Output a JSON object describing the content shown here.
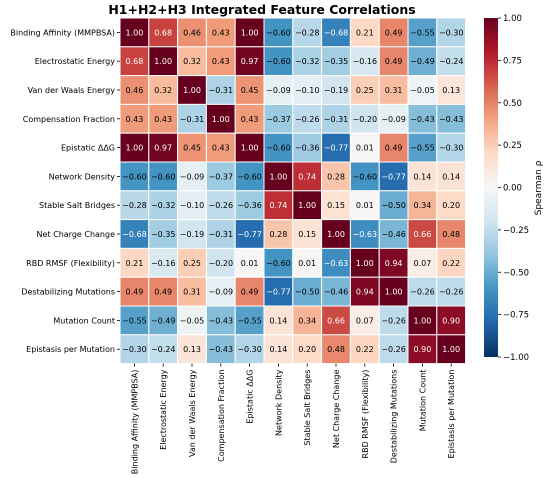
{
  "chart_data": {
    "type": "heatmap",
    "title": "H1+H2+H3 Integrated Feature Correlations",
    "row_labels": [
      "Binding Affinity (MMPBSA)",
      "Electrostatic Energy",
      "Van der Waals Energy",
      "Compensation Fraction",
      "Epistatic ΔΔG",
      "Network Density",
      "Stable Salt Bridges",
      "Net Charge Change",
      "RBD RMSF (Flexibility)",
      "Destabilizing Mutations",
      "Mutation Count",
      "Epistasis per Mutation"
    ],
    "col_labels": [
      "Binding Affinity (MMPBSA)",
      "Electrostatic Energy",
      "Van der Waals Energy",
      "Compensation Fraction",
      "Epistatic ΔΔG",
      "Network Density",
      "Stable Salt Bridges",
      "Net Charge Change",
      "RBD RMSF (Flexibility)",
      "Destabilizing Mutations",
      "Mutation Count",
      "Epistasis per Mutation"
    ],
    "values": [
      [
        1.0,
        0.68,
        0.46,
        0.43,
        1.0,
        -0.6,
        -0.28,
        -0.68,
        0.21,
        0.49,
        -0.55,
        -0.3
      ],
      [
        0.68,
        1.0,
        0.32,
        0.43,
        0.97,
        -0.6,
        -0.32,
        -0.35,
        -0.16,
        0.49,
        -0.49,
        -0.24
      ],
      [
        0.46,
        0.32,
        1.0,
        -0.31,
        0.45,
        -0.09,
        -0.1,
        -0.19,
        0.25,
        0.31,
        -0.05,
        0.13
      ],
      [
        0.43,
        0.43,
        -0.31,
        1.0,
        0.43,
        -0.37,
        -0.26,
        -0.31,
        -0.2,
        -0.09,
        -0.43,
        -0.43
      ],
      [
        1.0,
        0.97,
        0.45,
        0.43,
        1.0,
        -0.6,
        -0.36,
        -0.77,
        0.01,
        0.49,
        -0.55,
        -0.3
      ],
      [
        -0.6,
        -0.6,
        -0.09,
        -0.37,
        -0.6,
        1.0,
        0.74,
        0.28,
        -0.6,
        -0.77,
        0.14,
        0.14
      ],
      [
        -0.28,
        -0.32,
        -0.1,
        -0.26,
        -0.36,
        0.74,
        1.0,
        0.15,
        0.01,
        -0.5,
        0.34,
        0.2
      ],
      [
        -0.68,
        -0.35,
        -0.19,
        -0.31,
        -0.77,
        0.28,
        0.15,
        1.0,
        -0.63,
        -0.46,
        0.66,
        0.48
      ],
      [
        0.21,
        -0.16,
        0.25,
        -0.2,
        0.01,
        -0.6,
        0.01,
        -0.63,
        1.0,
        0.94,
        0.07,
        0.22
      ],
      [
        0.49,
        0.49,
        0.31,
        -0.09,
        0.49,
        -0.77,
        -0.5,
        -0.46,
        0.94,
        1.0,
        -0.26,
        -0.26
      ],
      [
        -0.55,
        -0.49,
        -0.05,
        -0.43,
        -0.55,
        0.14,
        0.34,
        0.66,
        0.07,
        -0.26,
        1.0,
        0.9
      ],
      [
        -0.3,
        -0.24,
        0.13,
        -0.43,
        -0.3,
        0.14,
        0.2,
        0.48,
        0.22,
        -0.26,
        0.9,
        1.0
      ]
    ],
    "vmin": -1.0,
    "vmax": 1.0,
    "colormap": "RdBu_r",
    "colorbar_label": "Spearman ρ",
    "colorbar_ticks": [
      "1.00",
      "0.75",
      "0.50",
      "0.25",
      "0.00",
      "−0.25",
      "−0.50",
      "−0.75",
      "−1.00"
    ],
    "legend_position": "right"
  }
}
